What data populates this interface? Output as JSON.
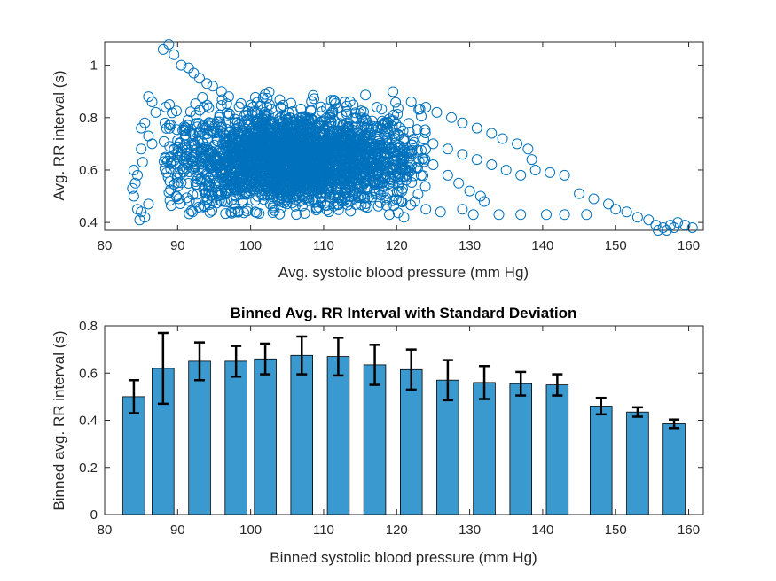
{
  "colors": {
    "scatter_marker": "#0072BD",
    "bar_fill": "#3A9AD0",
    "bar_edge": "#000000",
    "error_bar": "#000000",
    "axis": "#262626"
  },
  "chart_data": [
    {
      "type": "scatter",
      "title": "",
      "xlabel": "Avg. systolic blood pressure (mm Hg)",
      "ylabel": "Avg. RR interval (s)",
      "xlim": [
        80,
        162
      ],
      "ylim": [
        0.37,
        1.09
      ],
      "xticks": [
        "80",
        "90",
        "100",
        "110",
        "120",
        "130",
        "140",
        "150",
        "160"
      ],
      "yticks": [
        "0.4",
        "0.6",
        "0.8",
        "1"
      ],
      "grid": false,
      "marker": "open-circle",
      "dense_cloud": {
        "x_center": 106,
        "x_spread": 8.5,
        "y_center": 0.64,
        "y_spread": 0.095,
        "x_range": [
          88,
          124
        ],
        "y_range": [
          0.43,
          0.9
        ]
      },
      "points": [
        [
          88.0,
          1.06
        ],
        [
          88.8,
          1.08
        ],
        [
          89.5,
          1.04
        ],
        [
          90.5,
          1.0
        ],
        [
          91.5,
          0.99
        ],
        [
          92.2,
          0.97
        ],
        [
          93.0,
          0.95
        ],
        [
          94.0,
          0.93
        ],
        [
          94.8,
          0.92
        ],
        [
          96.0,
          0.9
        ],
        [
          97.0,
          0.88
        ],
        [
          86.0,
          0.88
        ],
        [
          86.5,
          0.86
        ],
        [
          87.0,
          0.82
        ],
        [
          85.5,
          0.78
        ],
        [
          85.0,
          0.76
        ],
        [
          86.0,
          0.73
        ],
        [
          86.5,
          0.7
        ],
        [
          85.0,
          0.68
        ],
        [
          84.0,
          0.6
        ],
        [
          84.5,
          0.58
        ],
        [
          83.8,
          0.53
        ],
        [
          84.0,
          0.5
        ],
        [
          84.5,
          0.45
        ],
        [
          85.0,
          0.44
        ],
        [
          85.5,
          0.42
        ],
        [
          86.0,
          0.47
        ],
        [
          84.2,
          0.55
        ],
        [
          85.2,
          0.63
        ],
        [
          84.8,
          0.41
        ],
        [
          122.0,
          0.86
        ],
        [
          124.0,
          0.84
        ],
        [
          125.5,
          0.82
        ],
        [
          127.5,
          0.8
        ],
        [
          129.0,
          0.78
        ],
        [
          131.0,
          0.76
        ],
        [
          133.0,
          0.74
        ],
        [
          134.5,
          0.72
        ],
        [
          136.5,
          0.7
        ],
        [
          138.0,
          0.68
        ],
        [
          125.0,
          0.7
        ],
        [
          127.0,
          0.68
        ],
        [
          129.0,
          0.66
        ],
        [
          131.0,
          0.64
        ],
        [
          133.0,
          0.62
        ],
        [
          135.0,
          0.6
        ],
        [
          137.0,
          0.58
        ],
        [
          139.0,
          0.6
        ],
        [
          141.0,
          0.59
        ],
        [
          143.0,
          0.58
        ],
        [
          138.5,
          0.64
        ],
        [
          125.0,
          0.62
        ],
        [
          127.0,
          0.58
        ],
        [
          128.5,
          0.55
        ],
        [
          130.0,
          0.52
        ],
        [
          131.5,
          0.5
        ],
        [
          132.0,
          0.48
        ],
        [
          129.0,
          0.45
        ],
        [
          130.5,
          0.43
        ],
        [
          134.0,
          0.43
        ],
        [
          137.0,
          0.43
        ],
        [
          140.5,
          0.43
        ],
        [
          143.0,
          0.43
        ],
        [
          146.0,
          0.43
        ],
        [
          145.0,
          0.51
        ],
        [
          147.0,
          0.49
        ],
        [
          149.0,
          0.47
        ],
        [
          150.0,
          0.45
        ],
        [
          151.5,
          0.44
        ],
        [
          153.0,
          0.42
        ],
        [
          154.5,
          0.41
        ],
        [
          155.5,
          0.39
        ],
        [
          156.5,
          0.38
        ],
        [
          157.5,
          0.39
        ],
        [
          158.5,
          0.4
        ],
        [
          159.5,
          0.39
        ],
        [
          160.5,
          0.38
        ],
        [
          155.8,
          0.37
        ],
        [
          157.0,
          0.37
        ],
        [
          158.0,
          0.38
        ],
        [
          122.5,
          0.48
        ],
        [
          124.0,
          0.45
        ],
        [
          126.0,
          0.44
        ],
        [
          121.0,
          0.42
        ],
        [
          119.0,
          0.43
        ]
      ]
    },
    {
      "type": "bar",
      "title": "Binned Avg. RR Interval with Standard Deviation",
      "xlabel": "Binned systolic blood pressure (mm Hg)",
      "ylabel": "Binned avg. RR interval (s)",
      "xlim": [
        80,
        162
      ],
      "ylim": [
        0,
        0.8
      ],
      "xticks": [
        "80",
        "90",
        "100",
        "110",
        "120",
        "130",
        "140",
        "150",
        "160"
      ],
      "yticks": [
        "0",
        "0.2",
        "0.4",
        "0.6",
        "0.8"
      ],
      "grid": false,
      "bar_width": 3.0,
      "x": [
        84,
        88,
        93,
        98,
        102,
        107,
        112,
        117,
        122,
        127,
        132,
        137,
        142,
        148,
        153,
        158
      ],
      "values": [
        0.5,
        0.62,
        0.65,
        0.65,
        0.66,
        0.675,
        0.67,
        0.635,
        0.615,
        0.57,
        0.56,
        0.555,
        0.55,
        0.46,
        0.435,
        0.385
      ],
      "errors": [
        0.07,
        0.15,
        0.08,
        0.065,
        0.065,
        0.08,
        0.08,
        0.085,
        0.085,
        0.085,
        0.07,
        0.05,
        0.045,
        0.035,
        0.02,
        0.018
      ]
    }
  ]
}
